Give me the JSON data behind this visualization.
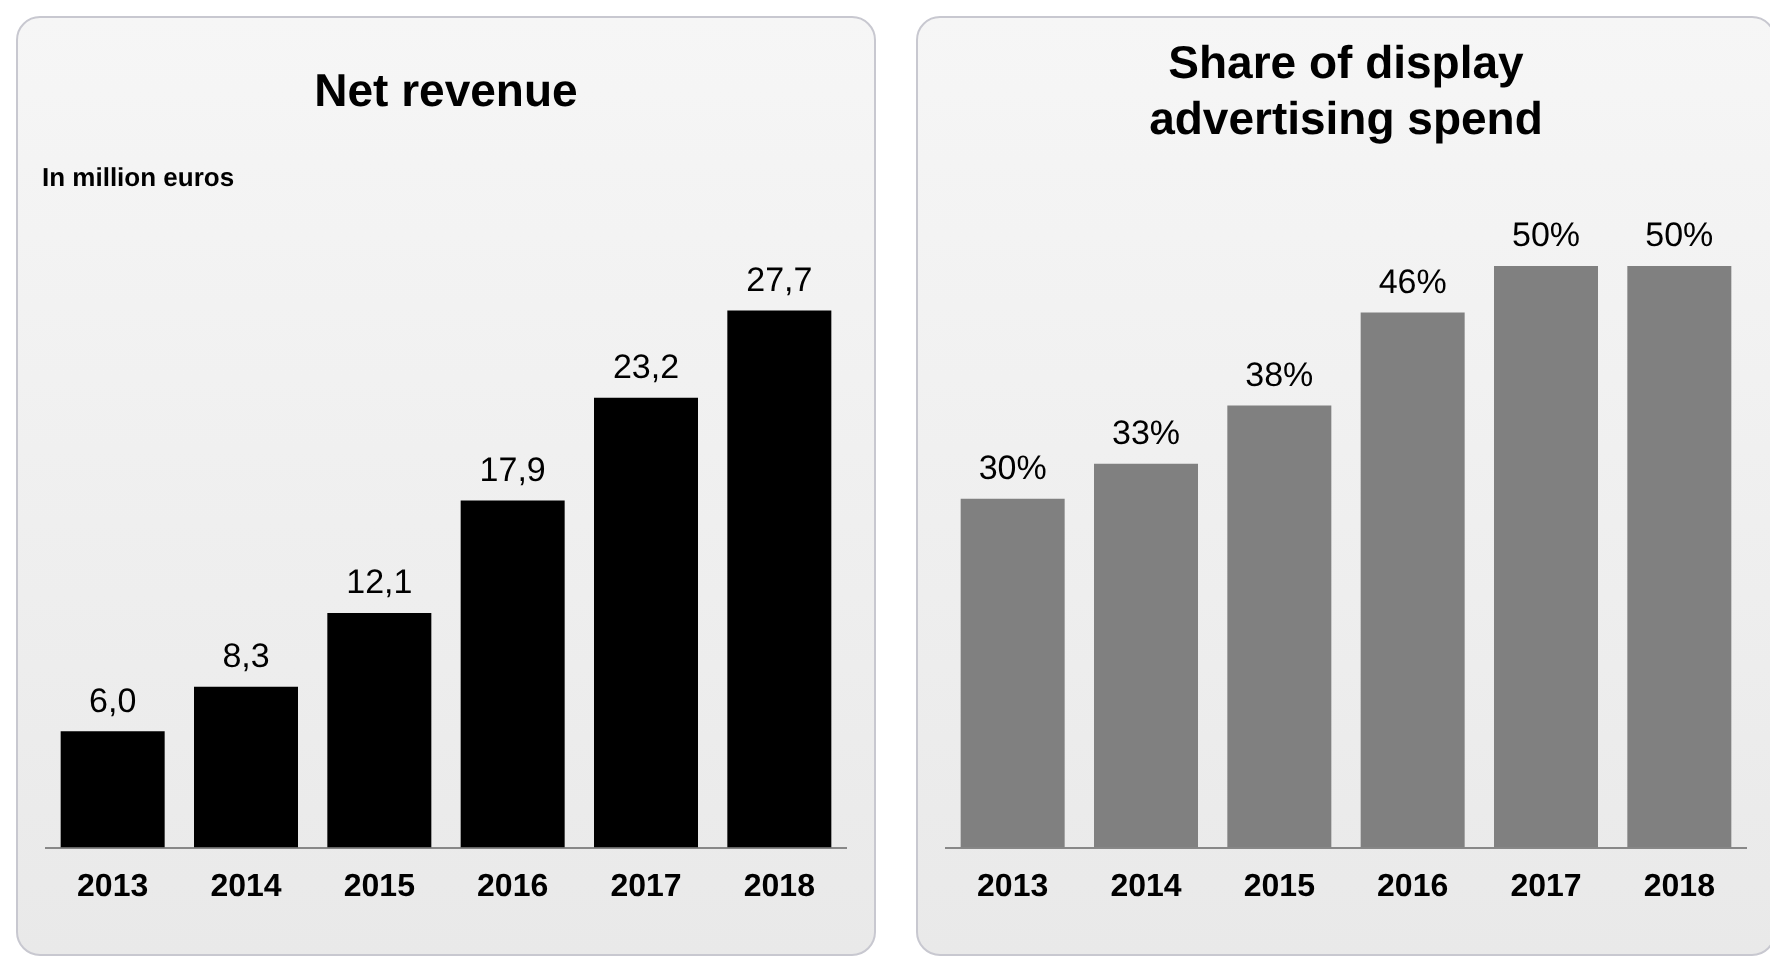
{
  "chart_data": [
    {
      "type": "bar",
      "title": "Net revenue",
      "subtitle": "In million euros",
      "categories": [
        "2013",
        "2014",
        "2015",
        "2016",
        "2017",
        "2018"
      ],
      "values": [
        6.0,
        8.3,
        12.1,
        17.9,
        23.2,
        27.7
      ],
      "value_labels": [
        "6,0",
        "8,3",
        "12,1",
        "17,9",
        "23,2",
        "27,7"
      ],
      "color": "#000000",
      "tick_labels": "x"
    },
    {
      "type": "bar",
      "title": "Share of display advertising spend",
      "categories": [
        "2013",
        "2014",
        "2015",
        "2016",
        "2017",
        "2018"
      ],
      "values": [
        30,
        33,
        38,
        46,
        50,
        50
      ],
      "value_labels": [
        "30%",
        "33%",
        "38%",
        "46%",
        "50%",
        "50%"
      ],
      "color": "#808080",
      "tick_labels": "x"
    }
  ]
}
